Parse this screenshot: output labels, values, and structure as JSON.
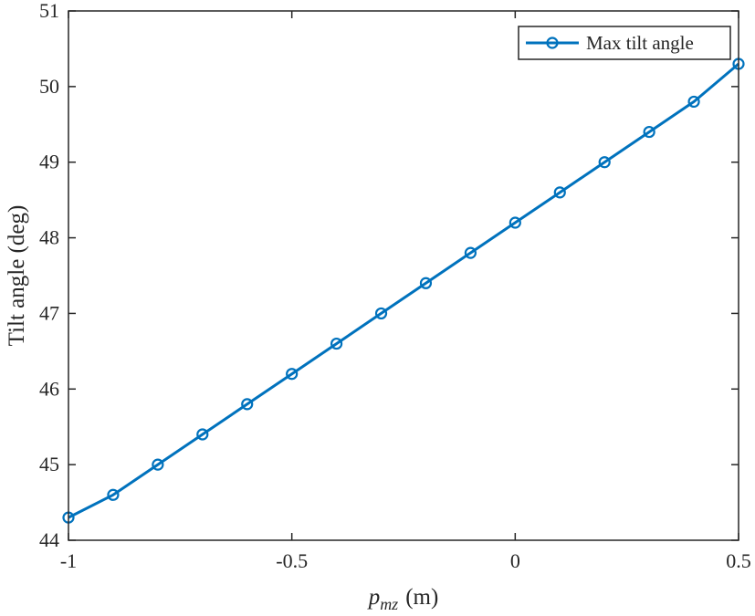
{
  "colors": {
    "series": "#0072BD",
    "axis": "#262626",
    "background": "#ffffff"
  },
  "chart_data": {
    "type": "line",
    "title": "",
    "xlabel_main": "p",
    "xlabel_sub": "mz",
    "xlabel_unit": "(m)",
    "ylabel": "Tilt angle (deg)",
    "xlim": [
      -1,
      0.5
    ],
    "ylim": [
      44,
      51
    ],
    "x_ticks": [
      -1,
      -0.5,
      0,
      0.5
    ],
    "x_tick_labels": [
      "-1",
      "-0.5",
      "0",
      "0.5"
    ],
    "y_ticks": [
      44,
      45,
      46,
      47,
      48,
      49,
      50,
      51
    ],
    "y_tick_labels": [
      "44",
      "45",
      "46",
      "47",
      "48",
      "49",
      "50",
      "51"
    ],
    "grid": false,
    "legend_position": "top-right",
    "series": [
      {
        "name": "Max tilt angle",
        "marker": "circle",
        "x": [
          -1.0,
          -0.9,
          -0.8,
          -0.7,
          -0.6,
          -0.5,
          -0.4,
          -0.3,
          -0.2,
          -0.1,
          0.0,
          0.1,
          0.2,
          0.3,
          0.4,
          0.5
        ],
        "y": [
          44.3,
          44.6,
          45.0,
          45.4,
          45.8,
          46.2,
          46.6,
          47.0,
          47.4,
          47.8,
          48.2,
          48.6,
          49.0,
          49.4,
          49.8,
          50.3
        ]
      }
    ]
  }
}
